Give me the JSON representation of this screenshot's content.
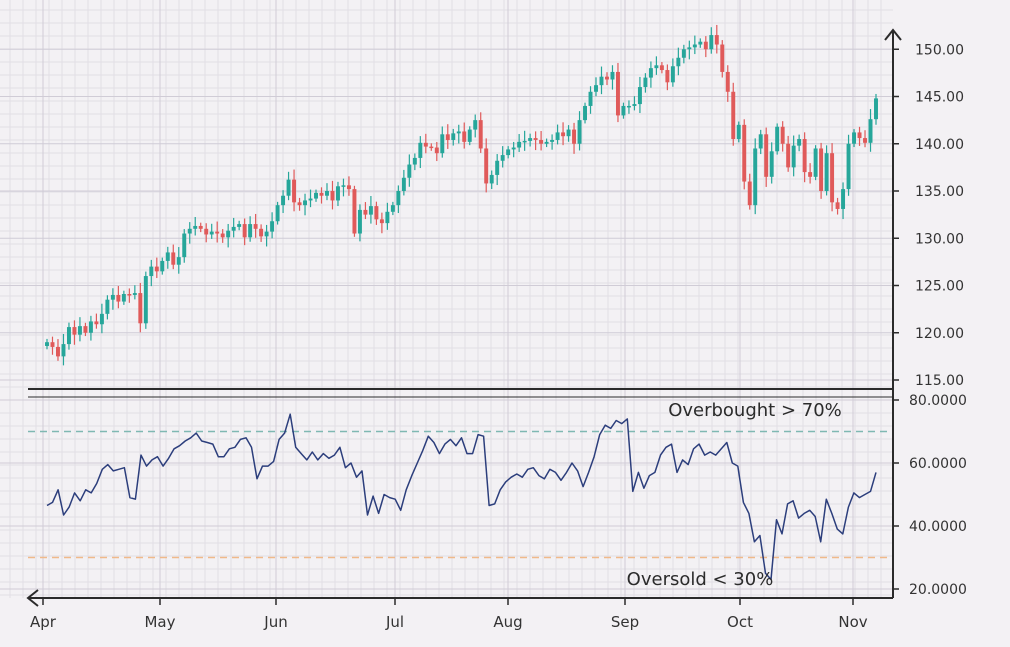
{
  "chart_data": [
    {
      "type": "candlestick",
      "title": "",
      "xlabel": "",
      "ylabel": "",
      "x_ticks": [
        "Apr",
        "May",
        "Jun",
        "Jul",
        "Aug",
        "Sep",
        "Oct",
        "Nov"
      ],
      "y_ticks": [
        "115.00",
        "120.00",
        "125.00",
        "130.00",
        "135.00",
        "140.00",
        "145.00",
        "150.00"
      ],
      "ylim": [
        114.5,
        152
      ],
      "grid": true,
      "colors": {
        "up": "#26a69a",
        "down": "#e05a5a"
      },
      "closes": [
        119.0,
        118.5,
        117.5,
        118.8,
        120.6,
        119.8,
        120.7,
        120.0,
        121.2,
        120.9,
        122.0,
        123.5,
        124.0,
        123.3,
        124.1,
        124.0,
        124.2,
        121.0,
        126.0,
        127.0,
        126.5,
        127.6,
        128.5,
        127.2,
        128.0,
        130.5,
        131.0,
        131.3,
        131.0,
        130.4,
        130.7,
        130.5,
        130.1,
        130.8,
        131.2,
        131.5,
        130.1,
        131.5,
        131.0,
        130.2,
        130.7,
        131.8,
        133.5,
        134.5,
        136.2,
        133.8,
        133.5,
        134.0,
        134.2,
        134.8,
        134.5,
        135.0,
        134.0,
        135.5,
        135.6,
        135.2,
        130.5,
        133.0,
        132.5,
        133.4,
        132.0,
        131.6,
        132.8,
        133.5,
        135.0,
        136.4,
        137.8,
        138.5,
        140.1,
        139.7,
        139.6,
        139.0,
        141.0,
        140.4,
        141.1,
        141.3,
        140.2,
        141.5,
        142.5,
        139.5,
        135.8,
        136.7,
        138.2,
        138.8,
        139.4,
        139.6,
        140.2,
        140.3,
        140.6,
        140.4,
        140.0,
        140.2,
        140.4,
        141.2,
        140.8,
        141.5,
        140.0,
        142.5,
        144.0,
        145.5,
        146.2,
        147.1,
        146.8,
        147.6,
        143.0,
        144.0,
        144.0,
        144.2,
        146.0,
        147.0,
        148.0,
        148.3,
        147.8,
        146.5,
        148.2,
        149.1,
        150.0,
        150.2,
        150.5,
        150.8,
        150.0,
        151.5,
        150.5,
        147.6,
        145.5,
        140.5,
        142.0,
        136.0,
        133.5,
        139.5,
        141.0,
        136.5,
        139.2,
        141.8,
        140.0,
        137.5,
        139.8,
        140.5,
        137.0,
        136.5,
        139.5,
        135.0,
        139.0,
        133.8,
        133.1,
        135.2,
        140.0,
        141.2,
        140.6,
        140.1,
        142.6,
        144.8
      ]
    },
    {
      "type": "line",
      "title": "",
      "xlabel": "",
      "ylabel": "",
      "y_ticks": [
        "20.0000",
        "40.0000",
        "60.0000",
        "80.0000"
      ],
      "ylim": [
        17.5,
        80
      ],
      "grid": true,
      "color": "#2c3e7c",
      "overbought": {
        "value": 70,
        "label": "Overbought > 70%",
        "color": "#7fb8b2"
      },
      "oversold": {
        "value": 30,
        "label": "Oversold < 30%",
        "color": "#f0b98a"
      },
      "values": [
        46.5,
        47.5,
        51.5,
        43.5,
        46.0,
        50.5,
        48.0,
        51.5,
        50.5,
        53.5,
        58.0,
        59.5,
        57.5,
        58.0,
        58.5,
        49.0,
        48.5,
        62.5,
        59.0,
        61.0,
        62.0,
        59.0,
        61.5,
        64.5,
        65.5,
        67.0,
        68.0,
        69.5,
        67.0,
        66.5,
        66.0,
        62.0,
        62.0,
        64.5,
        65.0,
        67.5,
        68.0,
        65.0,
        55.0,
        59.0,
        59.0,
        60.5,
        67.5,
        69.5,
        75.5,
        65.0,
        63.0,
        61.0,
        63.5,
        61.0,
        63.0,
        61.5,
        62.5,
        65.0,
        58.5,
        60.0,
        55.5,
        57.5,
        43.5,
        49.5,
        44.0,
        50.0,
        49.0,
        48.5,
        45.0,
        51.5,
        56.0,
        60.0,
        64.0,
        68.5,
        66.5,
        63.0,
        66.0,
        67.5,
        65.5,
        68.0,
        63.0,
        63.0,
        69.0,
        68.5,
        46.5,
        47.0,
        51.5,
        54.0,
        55.5,
        56.5,
        55.5,
        58.0,
        58.5,
        56.0,
        55.0,
        58.0,
        57.0,
        54.5,
        57.0,
        60.0,
        57.5,
        52.5,
        57.0,
        62.0,
        69.0,
        72.0,
        71.0,
        73.5,
        72.5,
        74.0,
        51.0,
        57.0,
        52.0,
        56.0,
        57.0,
        62.5,
        65.0,
        66.0,
        57.0,
        61.0,
        59.5,
        64.5,
        66.0,
        62.5,
        63.5,
        62.5,
        64.5,
        66.5,
        60.0,
        59.0,
        47.5,
        44.0,
        35.0,
        37.0,
        25.0,
        23.0,
        42.0,
        37.5,
        47.0,
        48.0,
        42.5,
        44.0,
        45.0,
        43.0,
        35.0,
        48.5,
        44.0,
        39.0,
        37.5,
        46.0,
        50.5,
        49.0,
        50.0,
        51.0,
        57.0
      ]
    }
  ]
}
